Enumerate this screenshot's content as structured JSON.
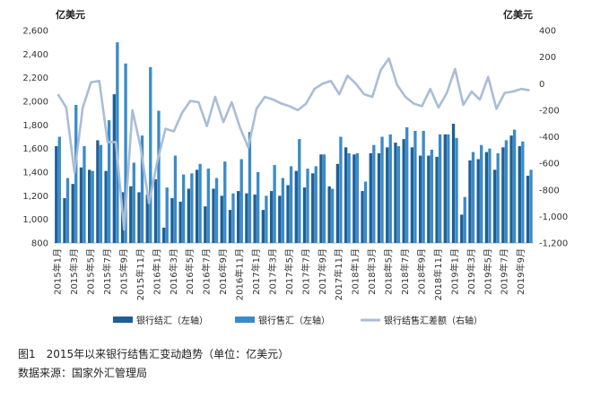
{
  "caption": {
    "figure": "图1　2015年以来银行结售汇变动趋势（单位：亿美元）",
    "source": "数据来源：国家外汇管理局"
  },
  "chart_data": {
    "type": "bar",
    "left_unit": "亿美元",
    "right_unit": "亿美元",
    "y_left": {
      "min": 800,
      "max": 2600,
      "step": 200,
      "ticks": [
        "800",
        "1,000",
        "1,200",
        "1,400",
        "1,600",
        "1,800",
        "2,000",
        "2,200",
        "2,400",
        "2,600"
      ]
    },
    "y_right": {
      "min": -1200,
      "max": 400,
      "step": 200,
      "ticks": [
        "-1,200",
        "-1,000",
        "-800",
        "-600",
        "-400",
        "-200",
        "0",
        "200",
        "400"
      ]
    },
    "x": [
      "2015年1月",
      "2015年2月",
      "2015年3月",
      "2015年4月",
      "2015年5月",
      "2015年6月",
      "2015年7月",
      "2015年8月",
      "2015年9月",
      "2015年10月",
      "2015年11月",
      "2015年12月",
      "2016年1月",
      "2016年2月",
      "2016年3月",
      "2016年4月",
      "2016年5月",
      "2016年6月",
      "2016年7月",
      "2016年8月",
      "2016年9月",
      "2016年10月",
      "2016年11月",
      "2016年12月",
      "2017年1月",
      "2017年2月",
      "2017年3月",
      "2017年4月",
      "2017年5月",
      "2017年6月",
      "2017年7月",
      "2017年8月",
      "2017年9月",
      "2017年10月",
      "2017年11月",
      "2017年12月",
      "2018年1月",
      "2018年2月",
      "2018年3月",
      "2018年4月",
      "2018年5月",
      "2018年6月",
      "2018年7月",
      "2018年8月",
      "2018年9月",
      "2018年10月",
      "2018年11月",
      "2018年12月",
      "2019年1月",
      "2019年2月",
      "2019年3月",
      "2019年4月",
      "2019年5月",
      "2019年6月",
      "2019年7月",
      "2019年8月",
      "2019年9月",
      "2019年10月"
    ],
    "x_tick_labels": [
      "2015年1月",
      "2015年3月",
      "2015年5月",
      "2015年7月",
      "2015年9月",
      "2015年11月",
      "2016年1月",
      "2016年3月",
      "2016年5月",
      "2016年7月",
      "2016年9月",
      "2016年11月",
      "2017年1月",
      "2017年3月",
      "2017年5月",
      "2017年7月",
      "2017年9月",
      "2017年11月",
      "2018年1月",
      "2018年3月",
      "2018年5月",
      "2018年7月",
      "2018年9月",
      "2018年11月",
      "2019年1月",
      "2019年3月",
      "2019年5月",
      "2019年7月",
      "2019年9月"
    ],
    "series": [
      {
        "name": "银行结汇（左轴）",
        "axis": "left",
        "kind": "bar",
        "color": "#1f5f96",
        "values": [
          1620,
          1180,
          1300,
          1440,
          1420,
          1670,
          1410,
          2060,
          1230,
          1280,
          1230,
          1210,
          1340,
          930,
          1180,
          1150,
          1260,
          1420,
          1110,
          1260,
          1200,
          1080,
          1240,
          1220,
          1210,
          1080,
          1240,
          1200,
          1290,
          1410,
          1270,
          1390,
          1550,
          1280,
          1470,
          1610,
          1550,
          1240,
          1560,
          1560,
          1610,
          1650,
          1680,
          1610,
          1540,
          1540,
          1530,
          1720,
          1810,
          1040,
          1500,
          1510,
          1570,
          1420,
          1610,
          1710,
          1620,
          1370
        ]
      },
      {
        "name": "银行售汇（左轴）",
        "axis": "left",
        "kind": "bar",
        "color": "#3a8cc8",
        "values": [
          1700,
          1350,
          1970,
          1620,
          1410,
          1630,
          1840,
          2500,
          2320,
          1480,
          1710,
          2290,
          1920,
          1270,
          1540,
          1380,
          1390,
          1470,
          1430,
          1350,
          1490,
          1220,
          1510,
          1740,
          1400,
          1200,
          1460,
          1350,
          1450,
          1680,
          1430,
          1450,
          1550,
          1260,
          1700,
          1560,
          1560,
          1320,
          1630,
          1700,
          1720,
          1620,
          1780,
          1750,
          1750,
          1590,
          1720,
          1720,
          1690,
          1190,
          1570,
          1630,
          1600,
          1560,
          1670,
          1760,
          1660,
          1420
        ]
      },
      {
        "name": "银行结售汇差额（右轴）",
        "axis": "right",
        "kind": "line",
        "color": "#a9bdd6",
        "values": [
          -80,
          -180,
          -670,
          -180,
          10,
          20,
          -440,
          -440,
          -1100,
          -200,
          -480,
          -900,
          -590,
          -340,
          -360,
          -220,
          -130,
          -140,
          -320,
          -100,
          -290,
          -140,
          -330,
          -480,
          -190,
          -100,
          -120,
          -150,
          -170,
          -200,
          -150,
          -40,
          0,
          20,
          -80,
          60,
          0,
          -80,
          -100,
          100,
          190,
          -10,
          -100,
          -150,
          -170,
          -40,
          -180,
          -70,
          110,
          -160,
          -60,
          -120,
          50,
          -190,
          -70,
          -60,
          -40,
          -50
        ]
      }
    ],
    "legend": {
      "position": "bottom"
    },
    "grid": false
  }
}
